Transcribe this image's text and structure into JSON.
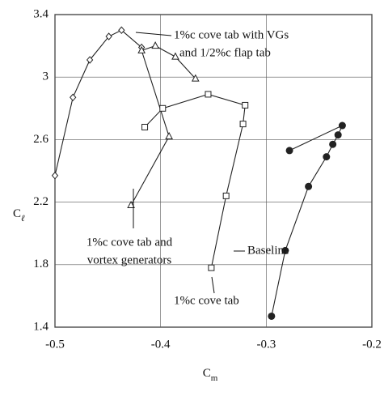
{
  "chart_data": {
    "type": "line",
    "x_label": {
      "base": "C",
      "sub": "m"
    },
    "y_label": {
      "base": "C",
      "sub": "ℓ"
    },
    "xlim": [
      -0.5,
      -0.2
    ],
    "xticks": [
      -0.5,
      -0.4,
      -0.3,
      -0.2
    ],
    "ylim": [
      1.4,
      3.4
    ],
    "yticks": [
      1.4,
      1.8,
      2.2,
      2.6,
      3,
      3.4
    ],
    "grid": true,
    "series": [
      {
        "name": [
          "1%c cove tab with VGs",
          "and 1/2%c flap tab"
        ],
        "marker": "diamond",
        "color": "#222222",
        "x": [
          -0.5,
          -0.483,
          -0.467,
          -0.449,
          -0.437,
          -0.418
        ],
        "values": [
          2.37,
          2.87,
          3.11,
          3.26,
          3.3,
          3.19
        ]
      },
      {
        "name": [
          "1%c cove tab and",
          "vortex generators"
        ],
        "marker": "triangle",
        "color": "#222222",
        "x": [
          -0.428,
          -0.392,
          -0.418,
          -0.405,
          -0.386,
          -0.367
        ],
        "values": [
          2.18,
          2.62,
          3.17,
          3.2,
          3.13,
          2.99
        ]
      },
      {
        "name": [
          "1%c cove tab"
        ],
        "marker": "square",
        "color": "#222222",
        "x": [
          -0.352,
          -0.338,
          -0.322,
          -0.32,
          -0.355,
          -0.398,
          -0.415
        ],
        "values": [
          1.78,
          2.24,
          2.7,
          2.82,
          2.89,
          2.8,
          2.68
        ]
      },
      {
        "name": [
          "Baseline"
        ],
        "marker": "circle",
        "color": "#222222",
        "x": [
          -0.295,
          -0.282,
          -0.26,
          -0.243,
          -0.237,
          -0.232,
          -0.228,
          -0.278
        ],
        "values": [
          1.47,
          1.89,
          2.3,
          2.49,
          2.57,
          2.63,
          2.69,
          2.53
        ]
      }
    ]
  }
}
